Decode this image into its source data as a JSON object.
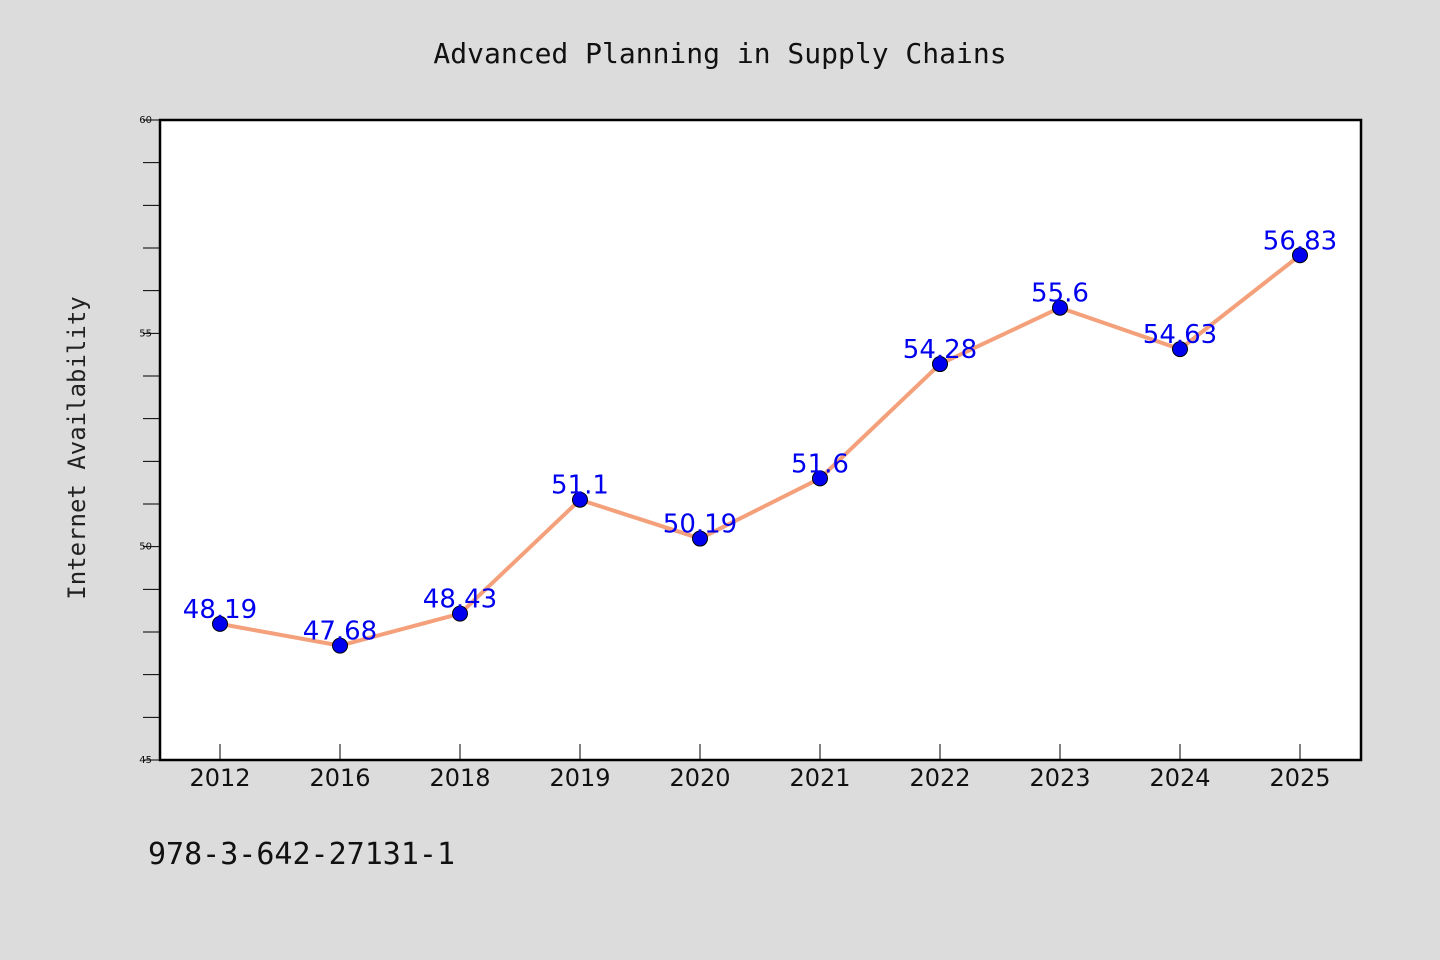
{
  "chart_data": {
    "type": "line",
    "title": "Advanced Planning in Supply Chains",
    "xlabel": "",
    "ylabel": "Internet Availability",
    "categories": [
      "2012",
      "2016",
      "2018",
      "2019",
      "2020",
      "2021",
      "2022",
      "2023",
      "2024",
      "2025"
    ],
    "series": [
      {
        "values": [
          48.19,
          47.68,
          48.43,
          51.1,
          50.19,
          51.6,
          54.28,
          55.6,
          54.63,
          56.83
        ],
        "labels": [
          "48.19",
          "47.68",
          "48.43",
          "51.1",
          "50.19",
          "51.6",
          "54.28",
          "55.6",
          "54.63",
          "56.83"
        ]
      }
    ],
    "ylim": [
      45,
      60
    ],
    "yticks": [
      45,
      50,
      55,
      60
    ],
    "ytick_labels": [
      "45",
      "50",
      "55",
      "60"
    ],
    "grid": false,
    "colors": {
      "line": "#f4a07a",
      "marker": "#0000ee",
      "label": "#0000ee",
      "plot_background": "#ffffff",
      "page_background": "#dcdcdc"
    }
  },
  "footnote": "978-3-642-27131-1"
}
